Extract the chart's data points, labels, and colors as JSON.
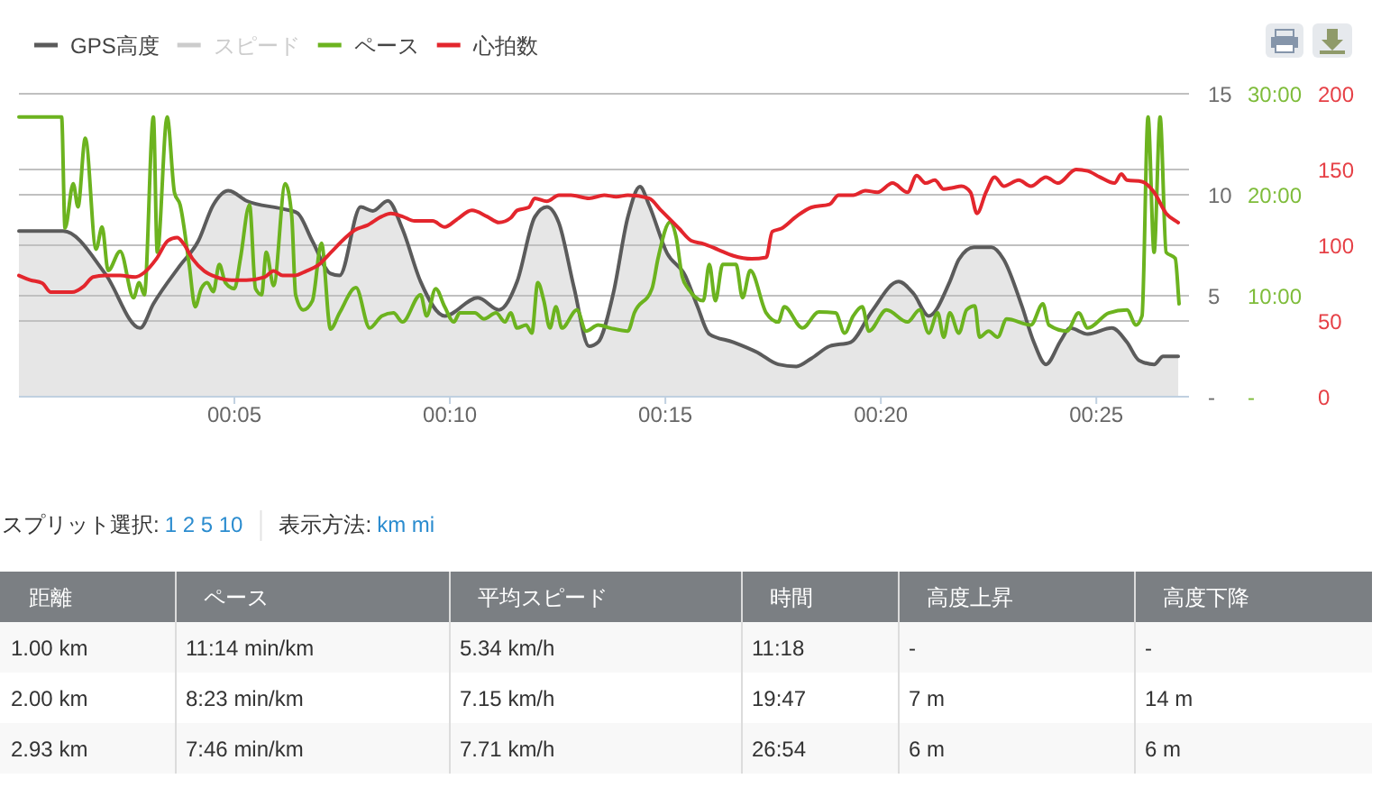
{
  "chart_data": [
    {
      "type": "line",
      "legend": "top left",
      "grid": "y",
      "xlim": [
        0,
        27.15
      ],
      "xticks": [
        {
          "value": 5,
          "label": "00:05"
        },
        {
          "value": 10,
          "label": "00:10"
        },
        {
          "value": 15,
          "label": "00:15"
        },
        {
          "value": 20,
          "label": "00:20"
        },
        {
          "value": 25,
          "label": "00:25"
        }
      ],
      "ylim": [
        0,
        15
      ],
      "yticks": [
        {
          "value": 0,
          "label": "-"
        },
        5,
        10,
        15
      ],
      "y2lim": [
        0,
        30
      ],
      "y2ticks": [
        {
          "value": 0,
          "label": "-"
        },
        {
          "value": 10,
          "label": "10:00"
        },
        {
          "value": 20,
          "label": "20:00"
        },
        {
          "value": 30,
          "label": "30:00"
        }
      ],
      "y3lim": [
        0,
        200
      ],
      "y3ticks": [
        0,
        50,
        100,
        150,
        200
      ],
      "series": [
        {
          "name": "GPS高度",
          "type": "area",
          "color": "#5b5b5b",
          "x": [
            0,
            1.03,
            2.0,
            2.81,
            3.12,
            3.74,
            4.16,
            4.51,
            4.86,
            5.28,
            6.12,
            6.46,
            6.81,
            7.23,
            7.44,
            7.93,
            8.21,
            8.56,
            8.9,
            9.32,
            9.88,
            10.65,
            11.14,
            11.56,
            11.97,
            12.25,
            12.53,
            12.88,
            13.23,
            13.44,
            13.79,
            14.13,
            14.41,
            14.62,
            15.04,
            15.46,
            15.74,
            16.02,
            16.58,
            17.13,
            17.62,
            18.04,
            18.39,
            18.81,
            19.3,
            19.78,
            20.41,
            20.76,
            21.11,
            21.6,
            21.81,
            22.16,
            22.57,
            22.85,
            23.27,
            23.55,
            23.83,
            24.18,
            24.39,
            24.8,
            25.36,
            25.71,
            25.99,
            26.34,
            26.55,
            26.9
          ],
          "values": [
            8.2,
            8.2,
            6.1,
            3.4,
            4.6,
            6.5,
            7.7,
            9.5,
            10.2,
            9.7,
            9.3,
            9.1,
            7.7,
            6.1,
            6.0,
            9.4,
            9.2,
            9.7,
            8.3,
            5.7,
            4.0,
            4.9,
            4.3,
            5.7,
            8.9,
            9.4,
            8.6,
            5.4,
            2.5,
            2.7,
            5.1,
            8.9,
            10.4,
            9.5,
            7.1,
            6.0,
            4.5,
            3.1,
            2.7,
            2.2,
            1.6,
            1.5,
            1.9,
            2.5,
            2.7,
            4.2,
            5.7,
            5.1,
            4.0,
            5.7,
            6.8,
            7.4,
            7.4,
            6.8,
            4.5,
            2.7,
            1.6,
            2.8,
            3.4,
            3.1,
            3.4,
            2.7,
            1.8,
            1.6,
            2.0,
            2.0
          ]
        },
        {
          "name": "スピード",
          "color": "#cccccc"
        },
        {
          "name": "ペース",
          "color": "#6cb31f",
          "axis": "y2",
          "x": [
            0,
            0.99,
            1.07,
            1.26,
            1.37,
            1.54,
            1.79,
            1.93,
            2.07,
            2.35,
            2.66,
            2.79,
            2.91,
            3.12,
            3.21,
            3.44,
            3.61,
            3.74,
            3.95,
            4.09,
            4.23,
            4.37,
            4.51,
            4.65,
            4.79,
            5.0,
            5.14,
            5.35,
            5.49,
            5.63,
            5.74,
            5.91,
            6.18,
            6.33,
            6.42,
            6.6,
            6.81,
            7.02,
            7.23,
            7.44,
            7.82,
            8.14,
            8.42,
            8.69,
            8.9,
            9.32,
            9.46,
            9.67,
            9.88,
            10.09,
            10.23,
            10.58,
            10.79,
            11.07,
            11.28,
            11.41,
            11.56,
            11.77,
            11.9,
            12.04,
            12.18,
            12.32,
            12.46,
            12.6,
            12.95,
            13.16,
            13.44,
            13.72,
            14.13,
            14.28,
            14.69,
            14.83,
            15.11,
            15.25,
            15.39,
            15.53,
            15.88,
            16.02,
            16.16,
            16.33,
            16.64,
            16.79,
            16.97,
            17.34,
            17.62,
            17.76,
            18.18,
            18.56,
            18.95,
            19.16,
            19.36,
            19.57,
            19.72,
            20.13,
            20.62,
            20.9,
            21.11,
            21.32,
            21.46,
            21.6,
            21.81,
            21.99,
            22.18,
            22.29,
            22.5,
            22.71,
            22.92,
            23.48,
            23.76,
            23.9,
            24.32,
            24.59,
            24.8,
            25.29,
            25.71,
            25.92,
            26.06,
            26.2,
            26.34,
            26.48,
            26.62,
            26.83,
            26.92
          ],
          "values": [
            27.7,
            27.7,
            16.7,
            21.1,
            18.8,
            25.6,
            14.6,
            16.8,
            12.5,
            14.4,
            9.8,
            11.3,
            10.1,
            27.7,
            14.3,
            27.7,
            20.2,
            19.0,
            13.1,
            8.9,
            10.7,
            11.3,
            10.4,
            13.1,
            11.3,
            10.7,
            13.7,
            19.0,
            10.7,
            10.1,
            14.3,
            11.0,
            21.1,
            17.9,
            10.1,
            8.6,
            9.5,
            15.2,
            6.7,
            8.3,
            10.8,
            6.8,
            8.0,
            8.3,
            7.4,
            10.1,
            8.0,
            10.7,
            8.9,
            7.4,
            8.3,
            8.3,
            7.7,
            8.3,
            7.4,
            8.3,
            6.8,
            7.1,
            6.3,
            11.3,
            9.5,
            6.8,
            8.9,
            6.8,
            8.6,
            6.5,
            7.1,
            6.8,
            6.5,
            8.3,
            10.7,
            13.7,
            17.3,
            15.8,
            11.9,
            10.7,
            9.5,
            13.1,
            9.5,
            13.1,
            13.1,
            9.8,
            12.5,
            8.3,
            7.4,
            8.9,
            6.8,
            8.4,
            8.3,
            6.3,
            8.0,
            8.9,
            6.5,
            8.6,
            7.4,
            8.6,
            6.3,
            8.3,
            5.9,
            8.3,
            6.3,
            8.6,
            9.0,
            5.9,
            6.5,
            5.9,
            7.7,
            7.1,
            9.2,
            7.1,
            6.5,
            8.3,
            6.8,
            8.3,
            8.6,
            7.1,
            8.0,
            27.7,
            14.3,
            27.7,
            14.3,
            13.7,
            9.2
          ]
        },
        {
          "name": "心拍数",
          "color": "#e3262d",
          "axis": "y3",
          "x": [
            0,
            0.26,
            0.54,
            0.74,
            0.95,
            1.23,
            1.51,
            1.72,
            2.0,
            2.35,
            2.7,
            2.91,
            3.19,
            3.46,
            3.67,
            3.82,
            4.03,
            4.3,
            4.58,
            4.93,
            5.28,
            5.7,
            5.91,
            6.12,
            6.39,
            6.67,
            6.95,
            7.23,
            7.58,
            7.79,
            8.07,
            8.42,
            8.63,
            8.9,
            9.18,
            9.6,
            9.88,
            10.16,
            10.51,
            10.86,
            11.14,
            11.41,
            11.56,
            11.83,
            11.97,
            12.25,
            12.53,
            12.81,
            13.23,
            13.58,
            13.86,
            14.13,
            14.62,
            14.9,
            15.32,
            15.6,
            15.88,
            16.23,
            16.58,
            17.0,
            17.34,
            17.48,
            17.69,
            18.04,
            18.39,
            18.81,
            19.02,
            19.36,
            19.64,
            19.92,
            20.27,
            20.62,
            20.83,
            21.04,
            21.25,
            21.46,
            21.67,
            21.87,
            22.08,
            22.23,
            22.44,
            22.64,
            22.85,
            23.2,
            23.48,
            23.83,
            24.11,
            24.53,
            24.8,
            25.08,
            25.42,
            25.58,
            25.71,
            26.06,
            26.34,
            26.62,
            26.9
          ],
          "values": [
            80,
            77,
            75,
            69,
            69,
            69,
            73,
            79,
            80,
            80,
            79,
            82,
            91,
            103,
            105,
            101,
            91,
            83,
            79,
            77,
            77,
            79,
            83,
            80,
            80,
            83,
            87,
            95,
            105,
            110,
            113,
            119,
            121,
            119,
            116,
            116,
            112,
            117,
            123,
            119,
            115,
            118,
            123,
            125,
            131,
            129,
            133,
            133,
            131,
            133,
            132,
            133,
            131,
            123,
            111,
            103,
            101,
            97,
            93,
            91,
            92,
            109,
            111,
            119,
            125,
            127,
            133,
            133,
            136,
            135,
            141,
            135,
            146,
            141,
            143,
            137,
            138,
            139,
            135,
            121,
            135,
            145,
            139,
            143,
            139,
            145,
            141,
            150,
            149,
            145,
            141,
            147,
            143,
            142,
            135,
            121,
            115
          ]
        }
      ]
    },
    {
      "type": "other",
      "title": "スプリット選択: 1 2 5 10",
      "subtitle": "表示方法: km mi",
      "categories": [
        "距離",
        "ペース",
        "平均スピード",
        "時間",
        "高度上昇",
        "高度下降"
      ],
      "annotations": [
        "1.00 km",
        "11:14 min/km",
        "5.34 km/h",
        "11:18",
        "-",
        "-",
        "2.00 km",
        "8:23 min/km",
        "7.15 km/h",
        "19:47",
        "7 m",
        "14 m",
        "2.93 km",
        "7:46 min/km",
        "7.71 km/h",
        "26:54",
        "6 m",
        "6 m"
      ]
    }
  ]
}
